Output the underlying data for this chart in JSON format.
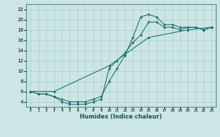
{
  "xlabel": "Humidex (Indice chaleur)",
  "ylabel": "",
  "background_color": "#cce5e5",
  "grid_color": "#aacccc",
  "line_color": "#1a7070",
  "xlim": [
    -0.5,
    23.5
  ],
  "ylim": [
    3,
    23
  ],
  "xticks": [
    0,
    1,
    2,
    3,
    4,
    5,
    6,
    7,
    8,
    9,
    10,
    11,
    12,
    13,
    14,
    15,
    16,
    17,
    18,
    19,
    20,
    21,
    22,
    23
  ],
  "yticks": [
    4,
    6,
    8,
    10,
    12,
    14,
    16,
    18,
    20,
    22
  ],
  "line1_x": [
    0,
    1,
    2,
    3,
    4,
    5,
    6,
    7,
    8,
    9,
    10,
    11,
    12,
    13,
    14,
    15,
    16,
    17,
    18,
    19,
    20,
    21,
    22,
    23
  ],
  "line1_y": [
    6,
    5.5,
    5.5,
    5,
    4.5,
    4,
    4,
    4,
    4.5,
    5,
    8,
    10.5,
    13,
    16.5,
    20.5,
    21,
    20.5,
    19,
    19,
    18.5,
    18.5,
    18.5,
    18,
    18.5
  ],
  "line2_x": [
    0,
    1,
    2,
    3,
    4,
    5,
    6,
    7,
    8,
    9,
    10,
    11,
    12,
    13,
    14,
    15,
    16,
    17,
    18,
    19,
    20,
    21,
    22,
    23
  ],
  "line2_y": [
    6,
    5.5,
    5.5,
    5,
    4,
    3.5,
    3.5,
    3.5,
    4,
    4.5,
    10.5,
    12,
    13.5,
    15.5,
    17,
    19.5,
    19.5,
    18.5,
    18.5,
    18,
    18.5,
    18.5,
    18,
    18.5
  ],
  "line3_x": [
    0,
    3,
    10,
    15,
    20,
    23
  ],
  "line3_y": [
    6,
    6,
    11,
    16.5,
    18,
    18.5
  ]
}
